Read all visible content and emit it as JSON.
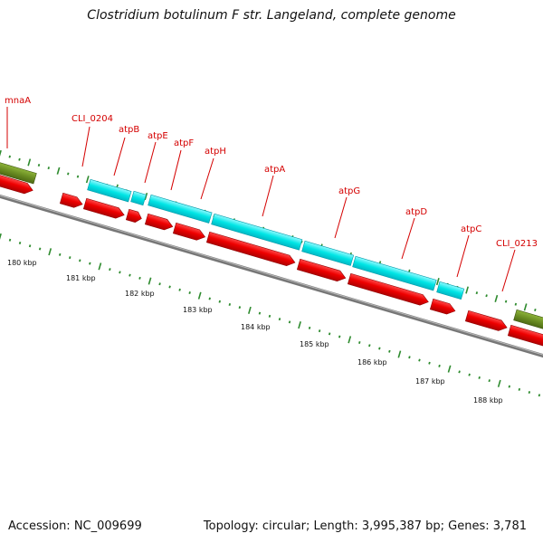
{
  "title": "Clostridium botulinum F str. Langeland, complete genome",
  "accession": "Accession: NC_009699",
  "summary": "Topology: circular; Length: 3,995,387 bp; Genes: 3,781",
  "colors": {
    "cds_red": "#ee0000",
    "rna_cyan": "#00e5e5",
    "olive": "#6b8e23",
    "backbone": "#808080",
    "label": "#d40000",
    "tick_green": "#2e8b2e"
  },
  "gene_labels": [
    "mnaA",
    "CLI_0204",
    "atpB",
    "atpE",
    "atpF",
    "atpH",
    "atpA",
    "atpG",
    "atpD",
    "atpC",
    "CLI_0213"
  ],
  "kbp_labels": [
    "180 kbp",
    "181 kbp",
    "182 kbp",
    "183 kbp",
    "184 kbp",
    "185 kbp",
    "186 kbp",
    "187 kbp",
    "188 kbp"
  ]
}
